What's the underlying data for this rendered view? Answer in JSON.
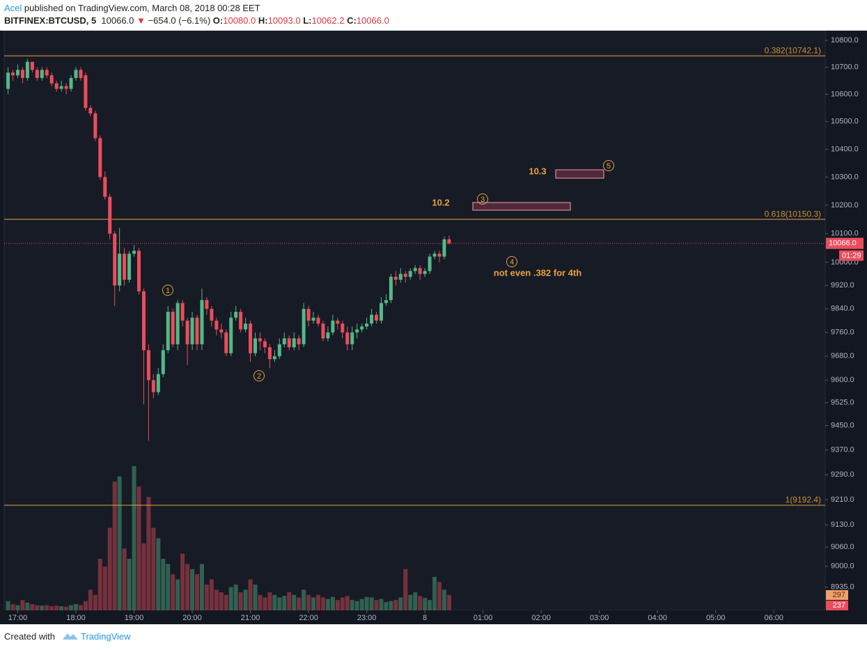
{
  "header": {
    "publisher": "Acel",
    "published": "published on TradingView.com, March 08, 2018 00:28 EET",
    "symbol": "BITFINEX:BTCUSD, 5",
    "price": "10066.0",
    "change": "−654.0 (−6.1%)",
    "ohlc": [
      {
        "key": "O:",
        "value": "10080.0"
      },
      {
        "key": "H:",
        "value": "10093.0"
      },
      {
        "key": "L:",
        "value": "10062.2"
      },
      {
        "key": "C:",
        "value": "10066.0"
      }
    ]
  },
  "footer": {
    "text": "Created with",
    "brand": "TradingView"
  },
  "annotations": {
    "wave1": "1",
    "wave2": "2",
    "wave3": "3",
    "wave4": "4",
    "wave5": "5",
    "box3": "10.2",
    "box5": "10.3",
    "note": "not even .382 for 4th"
  },
  "chart_data": {
    "type": "candlestick",
    "log": true,
    "grid": true,
    "up_color": "#53b987",
    "down_color": "#eb4d5c",
    "level_color": "#e8a23a",
    "ylim": [
      8863.6,
      10836.5
    ],
    "yticks": [
      {
        "value": 10800,
        "label": "10800.0"
      },
      {
        "value": 10700,
        "label": "10700.0"
      },
      {
        "value": 10600,
        "label": "10600.0"
      },
      {
        "value": 10500,
        "label": "10500.0"
      },
      {
        "value": 10400,
        "label": "10400.0"
      },
      {
        "value": 10300,
        "label": "10300.0"
      },
      {
        "value": 10200,
        "label": "10200.0"
      },
      {
        "value": 10100,
        "label": "10100.0"
      },
      {
        "value": 10000,
        "label": "10000.0"
      },
      {
        "value": 9920,
        "label": "9920.0"
      },
      {
        "value": 9840,
        "label": "9840.0"
      },
      {
        "value": 9760,
        "label": "9760.0"
      },
      {
        "value": 9680,
        "label": "9680.0"
      },
      {
        "value": 9600,
        "label": "9600.0"
      },
      {
        "value": 9525,
        "label": "9525.0"
      },
      {
        "value": 9450,
        "label": "9450.0"
      },
      {
        "value": 9370,
        "label": "9370.0"
      },
      {
        "value": 9290,
        "label": "9290.0"
      },
      {
        "value": 9210,
        "label": "9210.0"
      },
      {
        "value": 9130,
        "label": "9130.0"
      },
      {
        "value": 9060,
        "label": "9060.0"
      },
      {
        "value": 9000,
        "label": "9000.0"
      },
      {
        "value": 8935,
        "label": "8935.0"
      }
    ],
    "xlim": [
      "16:46",
      "06:53"
    ],
    "xticks": [
      "17:00",
      "18:00",
      "19:00",
      "20:00",
      "21:00",
      "22:00",
      "23:00",
      {
        "value": "00:00",
        "label": "8"
      },
      "01:00",
      "02:00",
      "03:00",
      "04:00",
      "05:00",
      "06:00"
    ],
    "levels": [
      {
        "value": 10742.1,
        "label": "0.382(10742.1)"
      },
      {
        "value": 10150.3,
        "label": "0.618(10150.3)"
      },
      {
        "value": 9192.4,
        "label": "1(9192.4)"
      }
    ],
    "last_price": {
      "value": 10066,
      "label": "10066.0"
    },
    "countdown": "01:29",
    "volume_ylim": [
      0,
      11250
    ],
    "volume_tags": [
      297,
      237
    ],
    "x": [
      "16:50",
      "16:55",
      "17:00",
      "17:05",
      "17:10",
      "17:15",
      "17:20",
      "17:25",
      "17:30",
      "17:35",
      "17:40",
      "17:45",
      "17:50",
      "17:55",
      "18:00",
      "18:05",
      "18:10",
      "18:15",
      "18:20",
      "18:25",
      "18:30",
      "18:35",
      "18:40",
      "18:45",
      "18:50",
      "18:55",
      "19:00",
      "19:05",
      "19:10",
      "19:15",
      "19:20",
      "19:25",
      "19:30",
      "19:35",
      "19:40",
      "19:45",
      "19:50",
      "19:55",
      "20:00",
      "20:05",
      "20:10",
      "20:15",
      "20:20",
      "20:25",
      "20:30",
      "20:35",
      "20:40",
      "20:45",
      "20:50",
      "20:55",
      "21:00",
      "21:05",
      "21:10",
      "21:15",
      "21:20",
      "21:25",
      "21:30",
      "21:35",
      "21:40",
      "21:45",
      "21:50",
      "21:55",
      "22:00",
      "22:05",
      "22:10",
      "22:15",
      "22:20",
      "22:25",
      "22:30",
      "22:35",
      "22:40",
      "22:45",
      "22:50",
      "22:55",
      "23:00",
      "23:05",
      "23:10",
      "23:15",
      "23:20",
      "23:25",
      "23:30",
      "23:35",
      "23:40",
      "23:45",
      "23:50",
      "23:55",
      "00:00",
      "00:05",
      "00:10",
      "00:15",
      "00:20",
      "00:25"
    ],
    "open": [
      10620,
      10680,
      10670,
      10690,
      10660,
      10720,
      10690,
      10660,
      10690,
      10670,
      10640,
      10620,
      10630,
      10620,
      10660,
      10690,
      10670,
      10550,
      10530,
      10440,
      10300,
      10230,
      10100,
      9920,
      10030,
      9940,
      10030,
      10040,
      9900,
      9700,
      9600,
      9560,
      9620,
      9700,
      9830,
      9720,
      9860,
      9800,
      9720,
      9810,
      9720,
      9870,
      9840,
      9800,
      9770,
      9760,
      9690,
      9810,
      9830,
      9770,
      9790,
      9690,
      9740,
      9730,
      9710,
      9670,
      9680,
      9720,
      9740,
      9710,
      9740,
      9720,
      9840,
      9800,
      9810,
      9790,
      9740,
      9760,
      9800,
      9790,
      9760,
      9720,
      9760,
      9770,
      9780,
      9790,
      9820,
      9800,
      9860,
      9870,
      9950,
      9940,
      9960,
      9950,
      9970,
      9980,
      9960,
      9970,
      10020,
      10030,
      10020,
      10080
    ],
    "high": [
      10700,
      10690,
      10710,
      10700,
      10730,
      10720,
      10700,
      10700,
      10700,
      10680,
      10650,
      10650,
      10640,
      10670,
      10700,
      10700,
      10680,
      10560,
      10540,
      10450,
      10320,
      10240,
      10110,
      10120,
      10050,
      10040,
      10060,
      10050,
      9910,
      9720,
      9620,
      9640,
      9720,
      9850,
      9840,
      9870,
      9870,
      9810,
      9830,
      9820,
      9910,
      9880,
      9850,
      9810,
      9790,
      9770,
      9830,
      9850,
      9840,
      9810,
      9800,
      9760,
      9760,
      9740,
      9720,
      9700,
      9740,
      9760,
      9750,
      9760,
      9750,
      9860,
      9850,
      9830,
      9820,
      9800,
      9780,
      9820,
      9810,
      9800,
      9780,
      9780,
      9790,
      9790,
      9810,
      9840,
      9830,
      9880,
      9890,
      9960,
      9970,
      9980,
      9970,
      9980,
      9990,
      9990,
      9980,
      10030,
      10040,
      10040,
      10090,
      10093
    ],
    "low": [
      10600,
      10650,
      10660,
      10640,
      10650,
      10680,
      10650,
      10650,
      10660,
      10630,
      10610,
      10610,
      10600,
      10610,
      10650,
      10650,
      10540,
      10520,
      10430,
      10290,
      10220,
      10080,
      9850,
      9900,
      9920,
      9930,
      10020,
      9890,
      9520,
      9400,
      9540,
      9550,
      9610,
      9690,
      9710,
      9700,
      9780,
      9650,
      9700,
      9700,
      9700,
      9820,
      9780,
      9750,
      9740,
      9680,
      9680,
      9800,
      9760,
      9760,
      9660,
      9680,
      9700,
      9690,
      9640,
      9660,
      9670,
      9710,
      9700,
      9700,
      9700,
      9710,
      9780,
      9790,
      9780,
      9730,
      9730,
      9750,
      9770,
      9740,
      9700,
      9700,
      9740,
      9760,
      9770,
      9780,
      9790,
      9790,
      9850,
      9860,
      9920,
      9930,
      9930,
      9940,
      9960,
      9940,
      9950,
      9960,
      10010,
      10000,
      10010,
      10062.2
    ],
    "close": [
      10680,
      10670,
      10690,
      10660,
      10720,
      10690,
      10660,
      10690,
      10670,
      10640,
      10620,
      10630,
      10620,
      10660,
      10690,
      10660,
      10550,
      10530,
      10440,
      10300,
      10230,
      10100,
      9920,
      10030,
      9940,
      10030,
      10040,
      9900,
      9700,
      9600,
      9560,
      9620,
      9700,
      9830,
      9720,
      9860,
      9800,
      9720,
      9810,
      9720,
      9870,
      9840,
      9800,
      9770,
      9760,
      9690,
      9810,
      9830,
      9770,
      9790,
      9690,
      9740,
      9730,
      9710,
      9670,
      9680,
      9720,
      9740,
      9710,
      9740,
      9720,
      9840,
      9800,
      9810,
      9790,
      9740,
      9760,
      9800,
      9790,
      9760,
      9720,
      9760,
      9770,
      9780,
      9790,
      9820,
      9800,
      9860,
      9870,
      9950,
      9940,
      9960,
      9950,
      9970,
      9980,
      9960,
      9970,
      10020,
      10030,
      10020,
      10080,
      10066
    ],
    "volume": [
      180,
      120,
      100,
      200,
      150,
      120,
      100,
      90,
      100,
      80,
      90,
      80,
      70,
      100,
      120,
      100,
      180,
      400,
      300,
      1000,
      850,
      1600,
      2500,
      2600,
      1200,
      1000,
      2800,
      2400,
      1300,
      2200,
      1600,
      1400,
      1000,
      900,
      700,
      600,
      1100,
      900,
      800,
      700,
      900,
      500,
      600,
      400,
      350,
      300,
      450,
      500,
      350,
      400,
      600,
      500,
      300,
      250,
      350,
      300,
      250,
      280,
      350,
      300,
      250,
      400,
      300,
      250,
      300,
      250,
      220,
      260,
      200,
      250,
      280,
      200,
      180,
      220,
      260,
      250,
      200,
      220,
      160,
      180,
      200,
      250,
      800,
      300,
      350,
      280,
      240,
      200,
      650,
      550,
      400,
      297
    ]
  }
}
